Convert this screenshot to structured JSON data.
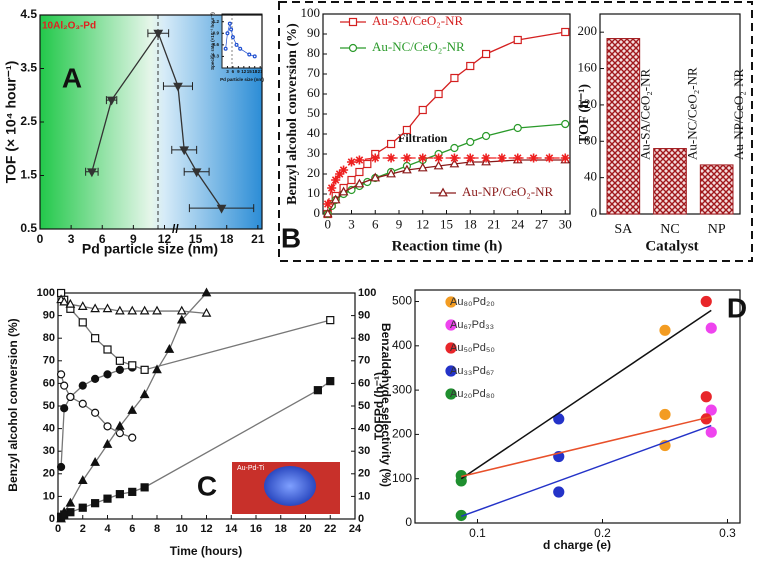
{
  "chart_data": [
    {
      "type": "line",
      "label": "A",
      "annotation": "10Al₂O₃-Pd",
      "xlabel": "Pd particle size (nm)",
      "ylabel": "TOF (× 10⁴ hour⁻¹)",
      "xlim": [
        0,
        21.4
      ],
      "xticks": [
        0,
        3,
        6,
        9,
        12,
        15,
        18,
        21
      ],
      "ylim": [
        0.5,
        4.5
      ],
      "yticks": [
        0.5,
        1.5,
        2.5,
        3.5,
        4.5
      ],
      "series": [
        {
          "color": "#333333",
          "marker": "triangle-down",
          "filled": true,
          "x": [
            5.0,
            6.9,
            11.4,
            13.3,
            13.9,
            15.1,
            17.5
          ],
          "values": [
            1.57,
            2.91,
            4.16,
            3.17,
            1.98,
            1.57,
            0.89
          ],
          "xerr": [
            0.6,
            0.5,
            1.0,
            1.4,
            1.2,
            1.2,
            3.1
          ]
        }
      ]
    },
    {
      "type": "line",
      "xlabel": "Pd particle size (nm)",
      "ylabel": "Specific rate (×10⁻¹ hour⁻¹)",
      "xlim": [
        0,
        22
      ],
      "xticks": [
        3,
        6,
        9,
        12,
        15,
        18,
        21
      ],
      "ylim": [
        0,
        1.4
      ],
      "yticks": [
        0.3,
        0.6,
        0.9,
        1.2
      ],
      "series": [
        {
          "color": "#1f4fd0",
          "marker": "circle",
          "filled": false,
          "x": [
            2,
            3,
            4.3,
            5,
            6,
            8,
            10,
            15,
            18
          ],
          "values": [
            0.5,
            0.9,
            1.15,
            1.0,
            0.8,
            0.6,
            0.5,
            0.35,
            0.3
          ]
        }
      ]
    },
    {
      "type": "line",
      "label": "B",
      "annotation": "Filtration",
      "xlabel": "Reaction time (h)",
      "ylabel": "Benzyl alcohol conversion (%)",
      "xlim": [
        -0.6,
        30.6
      ],
      "xticks": [
        0,
        3,
        6,
        9,
        12,
        15,
        18,
        21,
        24,
        27,
        30
      ],
      "ylim": [
        0,
        100
      ],
      "yticks": [
        0,
        10,
        20,
        30,
        40,
        50,
        60,
        70,
        80,
        90,
        100
      ],
      "legend": "upper left",
      "series": [
        {
          "name": "Au-SA/CeO₂-NR",
          "color": "#d42020",
          "marker": "square",
          "filled": false,
          "x": [
            0,
            0.5,
            1,
            2,
            3,
            4,
            5,
            6,
            8,
            10,
            12,
            14,
            16,
            18,
            20,
            24,
            30
          ],
          "values": [
            0,
            5,
            9,
            13,
            17,
            21,
            25,
            30,
            35,
            42,
            52,
            60,
            68,
            74,
            80,
            87,
            91
          ]
        },
        {
          "name": "Au-NC/CeO₂-NR",
          "color": "#2a9a2a",
          "marker": "circle",
          "filled": false,
          "x": [
            0,
            0.5,
            1,
            2,
            3,
            4,
            5,
            6,
            8,
            10,
            12,
            14,
            16,
            18,
            20,
            24,
            30
          ],
          "values": [
            0,
            4,
            7,
            10,
            12,
            14,
            16,
            18,
            21,
            24,
            27,
            30,
            33,
            36,
            39,
            43,
            45
          ]
        },
        {
          "name": "Au-NP/CeO₂-NR",
          "color": "#8b1a1a",
          "marker": "triangle",
          "filled": false,
          "x": [
            0,
            1,
            2,
            4,
            6,
            8,
            10,
            12,
            14,
            16,
            18,
            20,
            24,
            30
          ],
          "values": [
            0,
            7,
            11,
            15,
            18,
            20,
            22,
            23,
            24,
            25,
            26,
            26,
            27,
            27
          ]
        },
        {
          "color": "#ee2020",
          "marker": "star",
          "filled": true,
          "dashed": true,
          "x": [
            0,
            0.5,
            1,
            1.5,
            2,
            3,
            4,
            6,
            8,
            10,
            12,
            14,
            16,
            18,
            20,
            22,
            24,
            26,
            28,
            30
          ],
          "values": [
            5,
            13,
            17,
            20,
            22,
            26,
            27,
            28,
            28,
            28,
            28,
            28,
            28,
            28,
            28,
            28,
            28,
            28,
            28,
            28
          ]
        }
      ]
    },
    {
      "type": "bar",
      "xlabel": "Catalyst",
      "ylabel": "TOF (h⁻¹)",
      "categories": [
        "SA",
        "NC",
        "NP"
      ],
      "values": [
        193,
        72,
        54
      ],
      "bar_labels": [
        "Au-SA/CeO₂-NR",
        "Au-NC/CeO₂-NR",
        "Au-NP/CeO₂-NR"
      ],
      "color": "#a0181c",
      "ylim": [
        0,
        220
      ],
      "yticks": [
        0,
        40,
        80,
        120,
        160,
        200
      ]
    },
    {
      "type": "line",
      "label": "C",
      "xlabel": "Time (hours)",
      "ylabel": "Benzyl alcohol conversion (%)",
      "y2label": "Benzaldehyde selectivity (%)",
      "image_label": "Au-Pd-Ti",
      "xlim": [
        0,
        24
      ],
      "xticks": [
        0,
        2,
        4,
        6,
        8,
        10,
        12,
        14,
        16,
        18,
        20,
        22,
        24
      ],
      "ylim": [
        0,
        100
      ],
      "yticks": [
        0,
        10,
        20,
        30,
        40,
        50,
        60,
        70,
        80,
        90,
        100
      ],
      "y2lim": [
        0,
        100
      ],
      "y2ticks": [
        0,
        10,
        20,
        30,
        40,
        50,
        60,
        70,
        80,
        90,
        100
      ],
      "series": [
        {
          "color": "#111111",
          "marker": "circle",
          "filled": true,
          "x": [
            0.25,
            0.5,
            1,
            2,
            3,
            4,
            5,
            6
          ],
          "values": [
            23,
            49,
            54,
            59,
            62,
            64,
            66,
            67
          ]
        },
        {
          "color": "#111111",
          "marker": "square",
          "filled": false,
          "axis": "y2",
          "x": [
            0.25,
            0.5,
            1,
            2,
            3,
            4,
            5,
            6,
            7,
            22
          ],
          "values": [
            100,
            97,
            93,
            87,
            80,
            75,
            70,
            68,
            66,
            88
          ]
        },
        {
          "color": "#111111",
          "marker": "triangle",
          "filled": false,
          "axis": "y2",
          "x": [
            0.25,
            0.5,
            1,
            2,
            3,
            4,
            5,
            6,
            7,
            8,
            10,
            12
          ],
          "values": [
            97,
            96,
            95,
            94,
            93,
            93,
            92,
            92,
            92,
            92,
            92,
            91
          ]
        },
        {
          "color": "#111111",
          "marker": "circle",
          "filled": false,
          "x": [
            0.25,
            0.5,
            1,
            2,
            3,
            4,
            5,
            6
          ],
          "values": [
            64,
            59,
            54,
            51,
            47,
            41,
            38,
            36
          ]
        },
        {
          "color": "#111111",
          "marker": "triangle",
          "filled": true,
          "x": [
            0.25,
            0.5,
            1,
            2,
            3,
            4,
            5,
            6,
            7,
            8,
            9,
            10,
            12
          ],
          "values": [
            0,
            3,
            7,
            17,
            25,
            33,
            41,
            48,
            55,
            66,
            75,
            88,
            100
          ]
        },
        {
          "color": "#111111",
          "marker": "square",
          "filled": true,
          "x": [
            0.25,
            0.5,
            1,
            2,
            3,
            4,
            5,
            6,
            7,
            21,
            22
          ],
          "values": [
            1,
            2,
            3,
            5,
            7,
            9,
            11,
            12,
            14,
            57,
            61
          ]
        }
      ]
    },
    {
      "type": "scatter",
      "label": "D",
      "xlabel": "d charge (e)",
      "ylabel": "TOFPd (h⁻¹)",
      "xlim": [
        0.05,
        0.31
      ],
      "xticks": [
        0.1,
        0.2,
        0.3
      ],
      "ylim": [
        0,
        526
      ],
      "yticks": [
        0,
        100,
        200,
        300,
        400,
        500
      ],
      "legend": "upper left",
      "series": [
        {
          "name": "Au₈₀Pd₂₀",
          "color": "#f39c22",
          "marker": "circle",
          "filled": true,
          "line": false,
          "x": [
            0.25,
            0.25,
            0.25
          ],
          "values": [
            435,
            245,
            175
          ]
        },
        {
          "name": "Au₆₇Pd₃₃",
          "color": "#ee44ee",
          "marker": "circle",
          "filled": true,
          "line": false,
          "x": [
            0.287,
            0.287,
            0.287
          ],
          "values": [
            440,
            255,
            205
          ]
        },
        {
          "name": "Au₅₀Pd₅₀",
          "color": "#e8262a",
          "marker": "circle",
          "filled": true,
          "line": false,
          "x": [
            0.283,
            0.283,
            0.283
          ],
          "values": [
            500,
            285,
            235
          ]
        },
        {
          "name": "Au₃₃Pd₆₇",
          "color": "#2433c8",
          "marker": "circle",
          "filled": true,
          "line": false,
          "x": [
            0.165,
            0.165,
            0.165
          ],
          "values": [
            235,
            150,
            70
          ]
        },
        {
          "name": "Au₂₀Pd₈₀",
          "color": "#1f8f2f",
          "marker": "circle",
          "filled": true,
          "line": false,
          "x": [
            0.087,
            0.087,
            0.087
          ],
          "values": [
            107,
            95,
            17
          ]
        },
        {
          "color": "#111111",
          "marker": "none",
          "x": [
            0.087,
            0.287
          ],
          "values": [
            100,
            480
          ]
        },
        {
          "color": "#e8502a",
          "marker": "none",
          "x": [
            0.087,
            0.287
          ],
          "values": [
            105,
            240
          ]
        },
        {
          "color": "#2433c8",
          "marker": "none",
          "x": [
            0.087,
            0.287
          ],
          "values": [
            15,
            220
          ]
        }
      ]
    }
  ]
}
